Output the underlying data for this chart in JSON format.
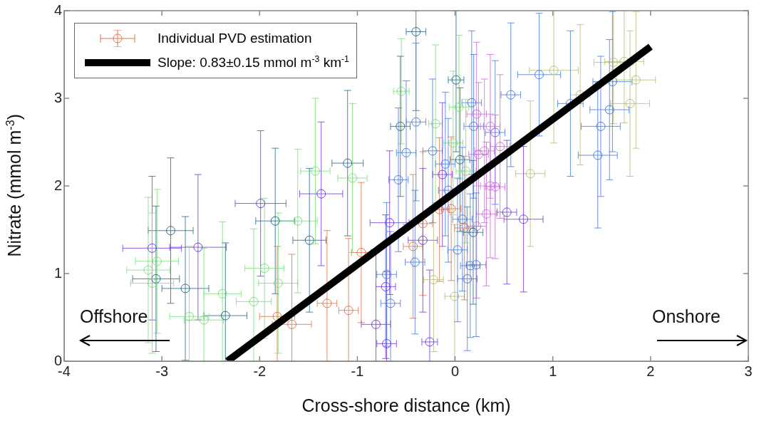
{
  "chart_data": {
    "type": "scatter",
    "xlabel": "Cross-shore distance (km)",
    "ylabel": "Nitrate (mmol m$^{-3}$)",
    "xlim": [
      -4,
      3
    ],
    "xticks": [
      -4,
      -3,
      -2,
      -1,
      0,
      1,
      2,
      3
    ],
    "ylim": [
      0,
      4
    ],
    "yticks": [
      0,
      1,
      2,
      3,
      4
    ],
    "legend": "top left",
    "annotations": [
      "Offshore",
      "Onshore"
    ],
    "series": [
      {
        "type": "scatter",
        "name": "Individual PVD estimation",
        "color": "#e0784f",
        "marker": "circle",
        "x": [
          -3.1,
          -2.91,
          -2.63,
          -3.05,
          -3.14,
          -3.06,
          -3.1,
          -2.76,
          -2.38,
          -2.35,
          -2.72,
          -2.57,
          -1.99,
          -1.84,
          -1.95,
          -1.81,
          -2.06,
          -1.82,
          -1.67,
          -0.4,
          -0.55,
          -0.56,
          -0.4,
          -0.2,
          -0.5,
          -0.23,
          -1.1,
          -1.05,
          -1.43,
          -1.37,
          -1.61,
          -1.49,
          -0.96,
          -1.31,
          -1.09,
          -0.81,
          -0.7,
          -0.26,
          -0.7,
          -0.66,
          -0.71,
          -0.67,
          -0.58,
          -0.43,
          -0.33,
          -0.33,
          -0.41,
          -0.13,
          -0.16,
          -0.22,
          -0.005,
          0.01,
          0.86,
          1.01,
          0.57,
          1.28,
          1.18,
          1.62,
          1.73,
          1.85,
          1.61,
          1.79,
          1.58,
          1.49,
          1.46,
          0.77,
          0.53,
          0.7,
          0.17,
          0.19,
          0.41,
          0.36,
          0.22,
          0.46,
          0.3,
          0.24,
          0.36,
          0.41,
          0.32,
          0.22,
          0.04,
          -0.02,
          -0.1,
          0.05,
          0.11,
          0.075,
          0.095,
          -0.04,
          0.025,
          0.155,
          0.215,
          0.125,
          0.185,
          -0.07
        ],
        "values": [
          1.29,
          1.49,
          1.3,
          1.14,
          1.04,
          0.94,
          0.89,
          0.83,
          0.77,
          0.52,
          0.51,
          0.47,
          1.8,
          1.6,
          1.06,
          0.89,
          0.68,
          0.51,
          0.42,
          3.76,
          3.08,
          2.68,
          2.73,
          2.71,
          2.38,
          2.4,
          2.26,
          2.09,
          2.17,
          1.91,
          1.6,
          1.38,
          1.24,
          0.66,
          0.58,
          0.42,
          0.2,
          0.22,
          0.99,
          0.66,
          0.85,
          1.58,
          2.07,
          1.31,
          1.57,
          1.38,
          1.13,
          2.13,
          1.73,
          0.93,
          0.74,
          3.21,
          3.27,
          3.32,
          3.04,
          3.04,
          2.94,
          3.41,
          3.42,
          3.21,
          3.19,
          2.94,
          2.87,
          2.68,
          2.35,
          2.14,
          1.7,
          1.62,
          2.95,
          2.68,
          2.61,
          2.68,
          2.82,
          2.45,
          2.4,
          2.36,
          2.0,
          1.99,
          1.68,
          1.54,
          2.9,
          2.49,
          2.25,
          2.3,
          2.17,
          1.62,
          1.52,
          1.74,
          1.27,
          1.09,
          1.1,
          0.94,
          1.47,
          1.95
        ],
        "colors": [
          "#7b3fe0",
          "#2f6f8f",
          "#7b3fe0",
          "#7ee07e",
          "#7ee07e",
          "#2f6f8f",
          "#7ee07e",
          "#2f6f8f",
          "#7ee07e",
          "#2f6f8f",
          "#7ee07e",
          "#7ee07e",
          "#7b3fe0",
          "#2f6f8f",
          "#7ee07e",
          "#7ee07e",
          "#7ee07e",
          "#e0784f",
          "#e0784f",
          "#2f6f8f",
          "#7ee07e",
          "#2f6f8f",
          "#4f7fe0",
          "#7ee07e",
          "#4f7fe0",
          "#4f7fe0",
          "#2f6f8f",
          "#7ee07e",
          "#7ee07e",
          "#7b3fe0",
          "#7ee07e",
          "#2f6f8f",
          "#e0784f",
          "#e0784f",
          "#e0784f",
          "#7b3fe0",
          "#7b3fe0",
          "#7b3fe0",
          "#4f7fe0",
          "#4f7fe0",
          "#7b3fe0",
          "#7b3fe0",
          "#4f7fe0",
          "#e0784f",
          "#e0784f",
          "#7b3fe0",
          "#4f7fe0",
          "#7b3fe0",
          "#e0784f",
          "#b8c07a",
          "#b8c07a",
          "#2f6f8f",
          "#4f7fe0",
          "#b8c07a",
          "#4f7fe0",
          "#b8c07a",
          "#4f7fe0",
          "#b8c07a",
          "#b8c07a",
          "#b8c07a",
          "#4f7fe0",
          "#b8c07a",
          "#4f7fe0",
          "#4f7fe0",
          "#4f7fe0",
          "#b8c07a",
          "#7b3fe0",
          "#7b3fe0",
          "#4f7fe0",
          "#4f7fe0",
          "#4f7fe0",
          "#d070e0",
          "#d070e0",
          "#d070e0",
          "#d070e0",
          "#d070e0",
          "#d070e0",
          "#d070e0",
          "#d070e0",
          "#d070e0",
          "#7ee07e",
          "#7ee07e",
          "#4f7fe0",
          "#2f6f8f",
          "#7ee07e",
          "#4f7fe0",
          "#e0784f",
          "#e0784f",
          "#4f7fe0",
          "#4f7fe0",
          "#4f7fe0",
          "#4f7fe0",
          "#2f6f8f",
          "#4f7fe0"
        ],
        "errors": [
          0.82,
          0.83,
          0.83,
          0.82,
          0.83,
          0.83,
          0.8,
          0.82,
          [
            0,
            1.59
          ],
          [
            0,
            1.35
          ],
          [
            0,
            1.31
          ],
          [
            0,
            1.29
          ],
          0.83,
          0.83,
          0.8,
          0.8,
          [
            0,
            1.51
          ],
          [
            0,
            1.31
          ],
          [
            0,
            1.22
          ],
          [
            2.86,
            4
          ],
          0.6,
          0.8,
          0.9,
          0.9,
          0.82,
          0.82,
          0.83,
          0.85,
          0.83,
          0.82,
          0.82,
          0.82,
          0.8,
          [
            0,
            1.49
          ],
          [
            0,
            1.4
          ],
          [
            0,
            1.24
          ],
          [
            0,
            1.02
          ],
          [
            0,
            1.04
          ],
          0.82,
          [
            0,
            1.48
          ],
          0.82,
          0.82,
          0.82,
          0.82,
          0.82,
          0.82,
          0.82,
          0.82,
          0.82,
          0.82,
          [
            0,
            1.56
          ],
          [
            2.39,
            4
          ],
          0.7,
          [
            2.49,
            4
          ],
          0.82,
          0.8,
          0.83,
          [
            2.71,
            4
          ],
          [
            2.72,
            4
          ],
          0.78,
          0.8,
          0.83,
          0.8,
          0.8,
          0.83,
          0.83,
          0.82,
          0.83,
          0.82,
          0.82,
          0.82,
          0.82,
          0.82,
          0.82,
          0.82,
          0.82,
          0.82,
          0.82,
          0.82,
          0.82,
          0.82,
          0.82,
          0.82,
          0.82,
          0.82,
          0.82,
          0.82,
          0.82,
          0.82,
          0.82,
          0.82,
          0.82,
          0.82,
          0.82
        ],
        "xerrors": [
          0.3,
          0.23,
          0.29,
          0.22,
          0.22,
          0.24,
          0.22,
          0.24,
          0.19,
          0.22,
          0.2,
          0.2,
          0.26,
          0.2,
          0.2,
          0.2,
          0.18,
          0.18,
          0.2,
          0.1,
          0.08,
          0.1,
          0.1,
          0.07,
          0.1,
          0.1,
          0.16,
          0.15,
          0.15,
          0.22,
          0.2,
          0.17,
          0.1,
          0.1,
          0.1,
          0.15,
          0.1,
          0.08,
          0.1,
          0.1,
          0.1,
          0.2,
          0.1,
          0.1,
          0.1,
          0.15,
          0.1,
          0.1,
          0.1,
          0.1,
          0.1,
          0.08,
          0.22,
          0.25,
          0.1,
          0.1,
          0.13,
          0.2,
          0.2,
          0.2,
          0.2,
          0.2,
          0.2,
          0.2,
          0.2,
          0.15,
          0.1,
          0.2,
          0.1,
          0.1,
          0.1,
          0.1,
          0.1,
          0.1,
          0.1,
          0.1,
          0.1,
          0.1,
          0.1,
          0.1,
          0.1,
          0.1,
          0.1,
          0.1,
          0.1,
          0.1,
          0.1,
          0.1,
          0.1,
          0.1,
          0.1,
          0.1,
          0.1,
          0.1
        ]
      },
      {
        "type": "line",
        "name": "Slope: 0.83±0.15 mmol m$^{-3}$ km$^{-1}$",
        "color": "#000000",
        "x": [
          -2.33,
          2
        ],
        "values": [
          0,
          3.59
        ]
      }
    ]
  }
}
